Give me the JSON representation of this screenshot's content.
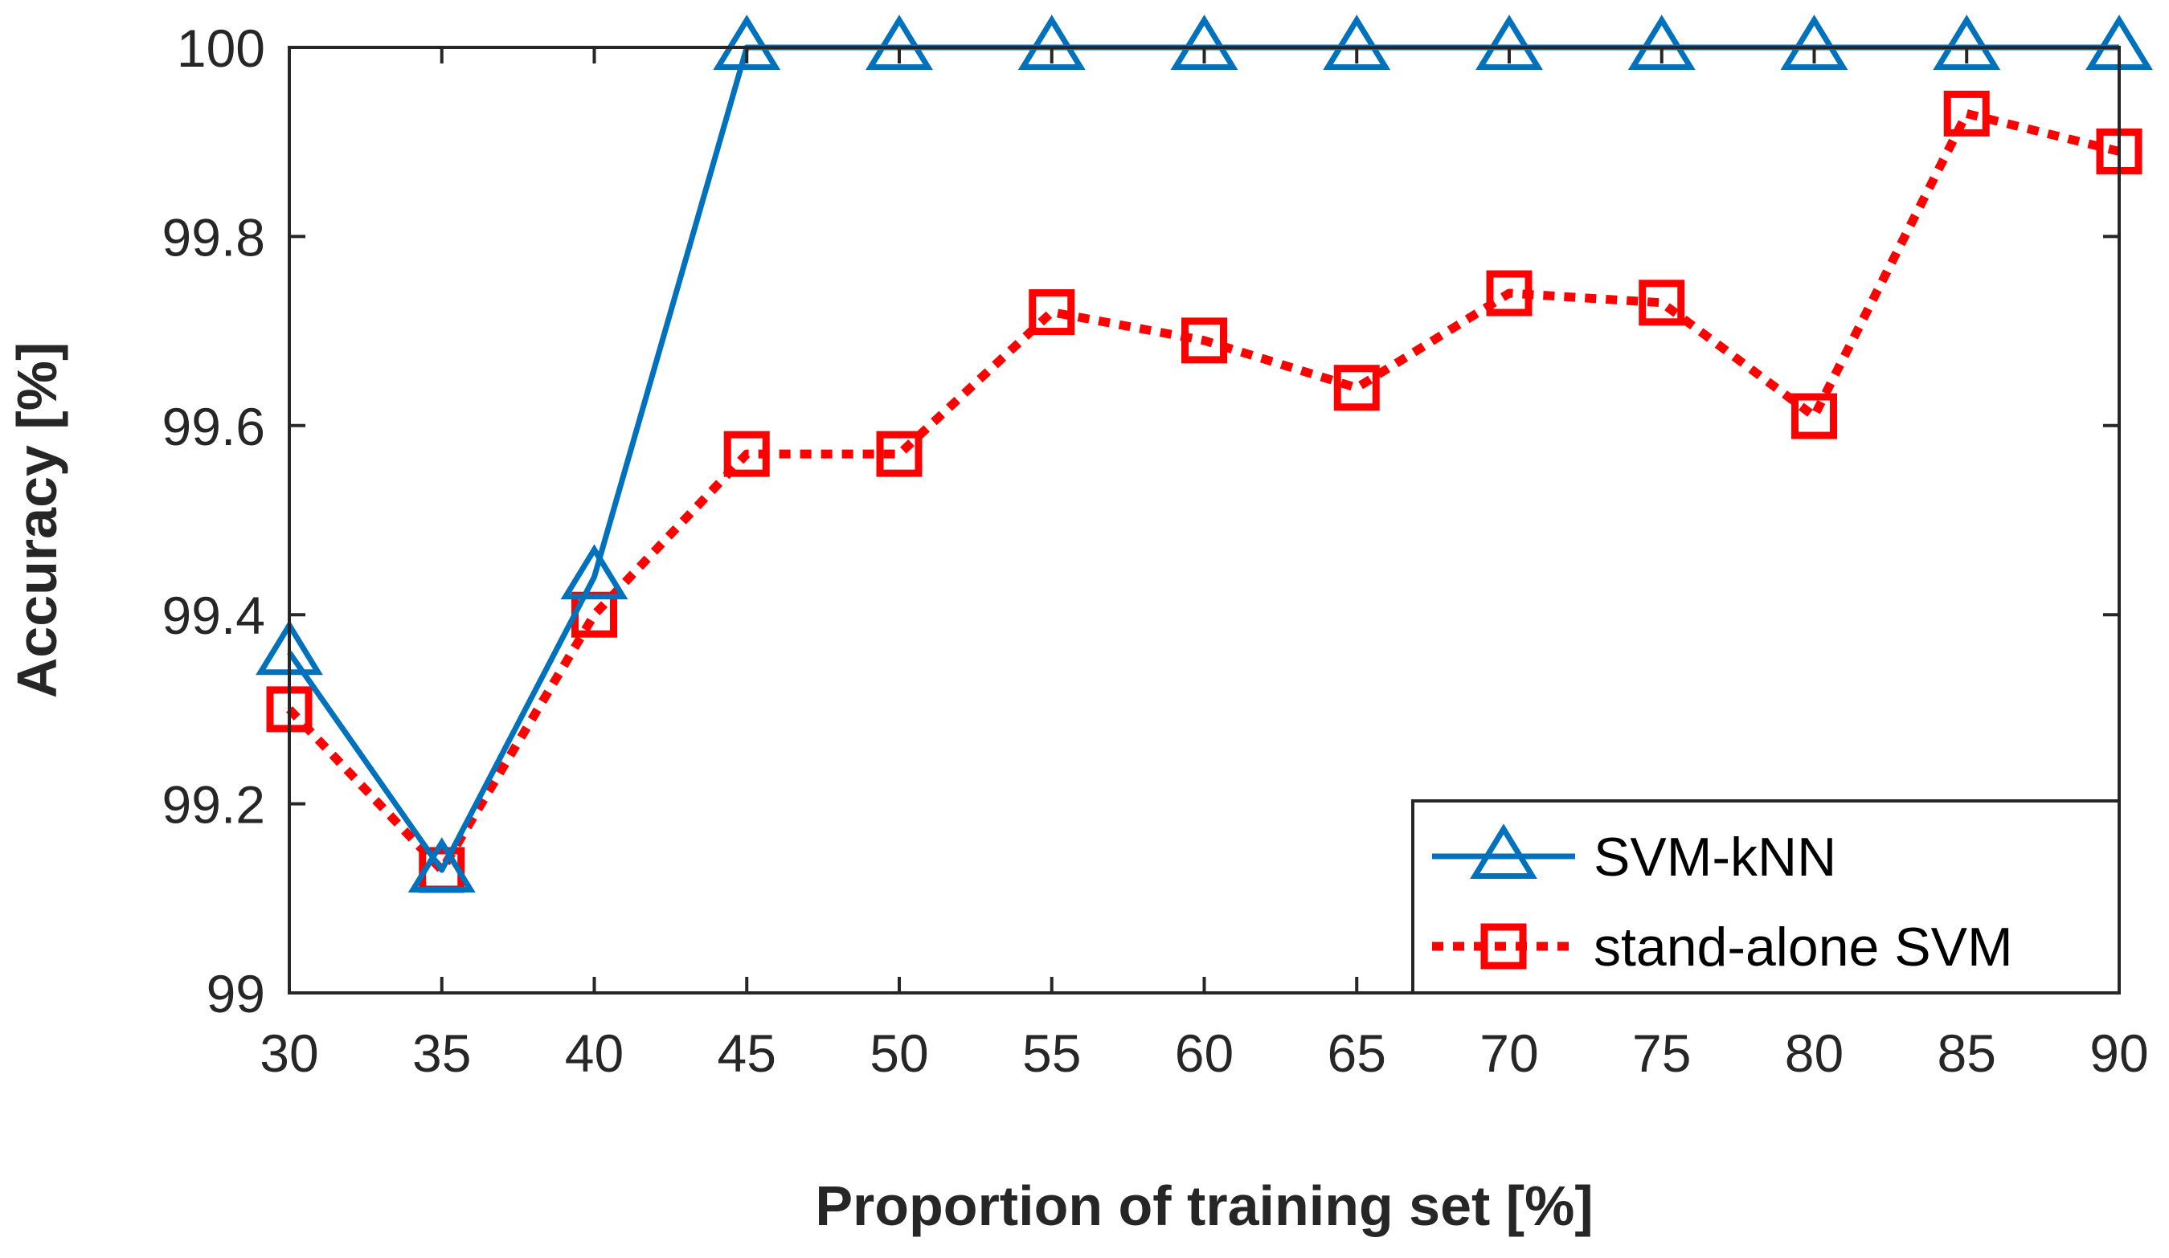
{
  "chart_data": {
    "type": "line",
    "title": "",
    "xlabel": "Proportion of training set [%]",
    "ylabel": "Accuracy [%]",
    "x": [
      30,
      35,
      40,
      45,
      50,
      55,
      60,
      65,
      70,
      75,
      80,
      85,
      90
    ],
    "xlim": [
      30,
      90
    ],
    "ylim": [
      99,
      100
    ],
    "xticks": [
      "30",
      "35",
      "40",
      "45",
      "50",
      "55",
      "60",
      "65",
      "70",
      "75",
      "80",
      "85",
      "90"
    ],
    "yticks": [
      "99",
      "99.2",
      "99.4",
      "99.6",
      "99.8",
      "100"
    ],
    "legend_position": "bottom-right",
    "grid": false,
    "series": [
      {
        "name": "SVM-kNN",
        "color": "#0072BD",
        "line_style": "solid",
        "marker": "triangle",
        "values": [
          99.36,
          99.13,
          99.44,
          100,
          100,
          100,
          100,
          100,
          100,
          100,
          100,
          100,
          100
        ]
      },
      {
        "name": "stand-alone SVM",
        "color": "#FF0000",
        "line_style": "dotted",
        "marker": "square",
        "values": [
          99.3,
          99.13,
          99.4,
          99.57,
          99.57,
          99.72,
          99.69,
          99.64,
          99.74,
          99.73,
          99.61,
          99.93,
          99.89
        ]
      }
    ]
  }
}
